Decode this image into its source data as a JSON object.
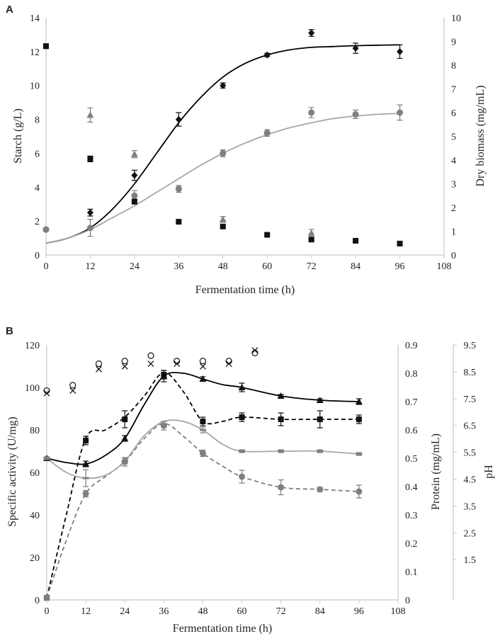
{
  "chart_data": [
    {
      "panel": "A",
      "type": "scatter",
      "xlabel": "Fermentation time (h)",
      "ylabel_left": "Starch (g/L)",
      "ylabel_right": "Dry biomass (mg/mL)",
      "xlim": [
        0,
        108
      ],
      "ylim_left": [
        0,
        14
      ],
      "ylim_right": [
        0,
        10
      ],
      "xticks": [
        "0",
        "12",
        "24",
        "36",
        "48",
        "60",
        "72",
        "84",
        "96",
        "108"
      ],
      "yticks_left": [
        "0",
        "2",
        "4",
        "6",
        "8",
        "10",
        "12",
        "14"
      ],
      "yticks_right": [
        "0",
        "1",
        "2",
        "3",
        "4",
        "5",
        "6",
        "7",
        "8",
        "9",
        "10"
      ],
      "series": [
        {
          "name": "black diamond (left axis)",
          "axis": "left",
          "marker": "diamond",
          "color": "#111111",
          "x": [
            0,
            12,
            24,
            36,
            48,
            60,
            72,
            84,
            96
          ],
          "y": [
            1.5,
            2.5,
            4.7,
            8.0,
            10.0,
            11.8,
            13.1,
            12.2,
            12.0
          ],
          "err": [
            0.1,
            0.2,
            0.3,
            0.4,
            0.15,
            0.1,
            0.2,
            0.3,
            0.4
          ]
        },
        {
          "name": "grey circle (left axis)",
          "axis": "left",
          "marker": "circle",
          "color": "#7f7f7f",
          "x": [
            0,
            12,
            24,
            36,
            48,
            60,
            72,
            84,
            96
          ],
          "y": [
            1.5,
            1.6,
            3.5,
            3.9,
            6.0,
            7.2,
            8.4,
            8.3,
            8.4
          ],
          "err": [
            0.1,
            0.5,
            0.3,
            0.2,
            0.2,
            0.2,
            0.3,
            0.25,
            0.45
          ]
        },
        {
          "name": "black square (right axis)",
          "axis": "right",
          "marker": "square",
          "color": "#111111",
          "x": [
            0,
            12,
            24,
            36,
            48,
            60,
            72,
            84,
            96
          ],
          "y": [
            8.8,
            4.05,
            2.25,
            1.4,
            1.2,
            0.85,
            0.65,
            0.6,
            0.48
          ],
          "err": [
            0.1,
            0.12,
            0.1,
            0.05,
            0.05,
            0.05,
            0.05,
            0.06,
            0.06
          ]
        },
        {
          "name": "grey triangle (right axis)",
          "axis": "right",
          "marker": "triangle",
          "color": "#7f7f7f",
          "x": [
            12,
            24,
            48,
            72
          ],
          "y": [
            5.9,
            4.25,
            1.5,
            0.93
          ],
          "err": [
            0.3,
            0.15,
            0.12,
            0.15
          ]
        }
      ],
      "curves": [
        {
          "name": "black fit",
          "axis": "left",
          "color": "#000000",
          "style": "solid",
          "x": [
            0,
            6,
            12,
            18,
            24,
            30,
            36,
            42,
            48,
            54,
            60,
            66,
            72,
            78,
            84,
            90,
            96
          ],
          "y": [
            0.7,
            1.0,
            1.6,
            2.7,
            4.2,
            6.0,
            7.8,
            9.3,
            10.5,
            11.3,
            11.8,
            12.1,
            12.25,
            12.3,
            12.35,
            12.38,
            12.4
          ]
        },
        {
          "name": "grey fit",
          "axis": "left",
          "color": "#a6a6a6",
          "style": "solid",
          "x": [
            0,
            6,
            12,
            18,
            24,
            30,
            36,
            42,
            48,
            54,
            60,
            66,
            72,
            78,
            84,
            90,
            96
          ],
          "y": [
            0.7,
            1.0,
            1.5,
            2.2,
            2.9,
            3.7,
            4.5,
            5.3,
            6.0,
            6.6,
            7.1,
            7.5,
            7.8,
            8.05,
            8.2,
            8.3,
            8.35
          ]
        }
      ]
    },
    {
      "panel": "B",
      "type": "line",
      "xlabel": "Fermentation time (h)",
      "ylabel_left": "Specific activity (U/mg)",
      "ylabel_right1": "Protein (mg/mL)",
      "ylabel_right2": "pH",
      "xlim": [
        0,
        108
      ],
      "ylim_left": [
        0,
        120
      ],
      "ylim_right1": [
        0,
        0.9
      ],
      "ylim_right2": [
        0,
        9.5
      ],
      "xticks": [
        "0",
        "12",
        "24",
        "36",
        "48",
        "60",
        "72",
        "84",
        "96",
        "108"
      ],
      "yticks_left": [
        "0",
        "20",
        "40",
        "60",
        "80",
        "100",
        "120"
      ],
      "yticks_right1": [
        "0",
        "0.1",
        "0.2",
        "0.3",
        "0.4",
        "0.5",
        "0.6",
        "0.7",
        "0.8",
        "0.9"
      ],
      "yticks_right2": [
        "1.5",
        "2.5",
        "3.5",
        "4.5",
        "5.5",
        "6.5",
        "7.5",
        "8.5",
        "9.5"
      ],
      "series": [
        {
          "name": "black square (left axis)",
          "axis": "left",
          "marker": "square",
          "color": "#111111",
          "x": [
            0,
            12,
            24,
            36,
            48,
            60,
            72,
            84,
            96
          ],
          "y": [
            1,
            75,
            85,
            106,
            84,
            86,
            85,
            85,
            85
          ],
          "err": [
            1,
            2,
            4,
            2,
            2,
            2,
            3,
            4,
            2
          ]
        },
        {
          "name": "grey circle (left axis)",
          "axis": "left",
          "marker": "circle",
          "color": "#7f7f7f",
          "x": [
            0,
            12,
            24,
            36,
            48,
            60,
            72,
            84,
            96
          ],
          "y": [
            1,
            50,
            65,
            82,
            69,
            58,
            53,
            52,
            51
          ],
          "err": [
            1,
            1.5,
            2,
            2,
            1.5,
            3,
            3.5,
            1,
            3
          ]
        },
        {
          "name": "black triangle (right axis, protein)",
          "axis": "right1",
          "marker": "triangle",
          "color": "#111111",
          "x": [
            0,
            12,
            24,
            36,
            48,
            60,
            72,
            84,
            96
          ],
          "y": [
            0.5,
            0.48,
            0.57,
            0.79,
            0.78,
            0.75,
            0.72,
            0.705,
            0.7
          ],
          "err": [
            0.005,
            0.01,
            0.01,
            0.02,
            0.008,
            0.015,
            0.005,
            0.005,
            0.01
          ]
        },
        {
          "name": "grey dash (right axis, protein)",
          "axis": "right1",
          "marker": "dash",
          "color": "#7f7f7f",
          "x": [
            0,
            12,
            24,
            36,
            48,
            60,
            72,
            84,
            96
          ],
          "y": [
            0.5,
            0.43,
            0.49,
            0.62,
            0.6,
            0.525,
            0.525,
            0.525,
            0.515
          ],
          "err": [
            0.005,
            0.03,
            0.01,
            0.01,
            0.01,
            0.005,
            0.005,
            0.005,
            0.005
          ]
        },
        {
          "name": "open circle (pH axis)",
          "axis": "right2",
          "marker": "open-circle",
          "color": "#111111",
          "x": [
            0,
            8,
            16,
            24,
            32,
            40,
            48,
            56,
            64
          ],
          "y": [
            7.8,
            8.0,
            8.8,
            8.9,
            9.1,
            8.9,
            8.9,
            8.9,
            9.2
          ],
          "err": [
            0,
            0,
            0,
            0,
            0,
            0,
            0,
            0,
            0
          ]
        },
        {
          "name": "cross (pH axis)",
          "axis": "right2",
          "marker": "x",
          "color": "#111111",
          "x": [
            0,
            8,
            16,
            24,
            32,
            40,
            48,
            56,
            64
          ],
          "y": [
            7.7,
            7.8,
            8.6,
            8.7,
            8.8,
            8.8,
            8.7,
            8.8,
            9.3
          ],
          "err": [
            0,
            0,
            0,
            0,
            0,
            0,
            0,
            0,
            0
          ]
        }
      ],
      "curves": [
        {
          "name": "black dashed fit",
          "axis": "left",
          "color": "#000000",
          "style": "dashed",
          "x": [
            0,
            6,
            12,
            18,
            24,
            30,
            36,
            42,
            48,
            54,
            60,
            72,
            84,
            96
          ],
          "y": [
            1,
            40,
            76,
            80,
            86,
            96,
            107,
            98,
            84,
            84,
            86,
            85,
            85,
            85
          ]
        },
        {
          "name": "grey dashed fit",
          "axis": "left",
          "color": "#7f7f7f",
          "style": "dashed",
          "x": [
            0,
            6,
            12,
            18,
            24,
            30,
            36,
            42,
            48,
            54,
            60,
            72,
            84,
            96
          ],
          "y": [
            1,
            28,
            50,
            58,
            65,
            76,
            83,
            77,
            69,
            63,
            58,
            53,
            52,
            51
          ]
        },
        {
          "name": "black solid fit",
          "axis": "right1",
          "color": "#000000",
          "style": "solid",
          "x": [
            0,
            6,
            12,
            18,
            24,
            30,
            36,
            42,
            48,
            54,
            60,
            72,
            84,
            96
          ],
          "y": [
            0.5,
            0.485,
            0.48,
            0.51,
            0.57,
            0.69,
            0.79,
            0.8,
            0.78,
            0.76,
            0.75,
            0.72,
            0.705,
            0.7
          ]
        },
        {
          "name": "grey solid fit",
          "axis": "right1",
          "color": "#a6a6a6",
          "style": "solid",
          "x": [
            0,
            6,
            12,
            18,
            24,
            30,
            36,
            42,
            48,
            54,
            60,
            72,
            84,
            96
          ],
          "y": [
            0.5,
            0.45,
            0.43,
            0.44,
            0.49,
            0.58,
            0.63,
            0.63,
            0.6,
            0.55,
            0.525,
            0.525,
            0.525,
            0.515
          ]
        }
      ]
    }
  ]
}
